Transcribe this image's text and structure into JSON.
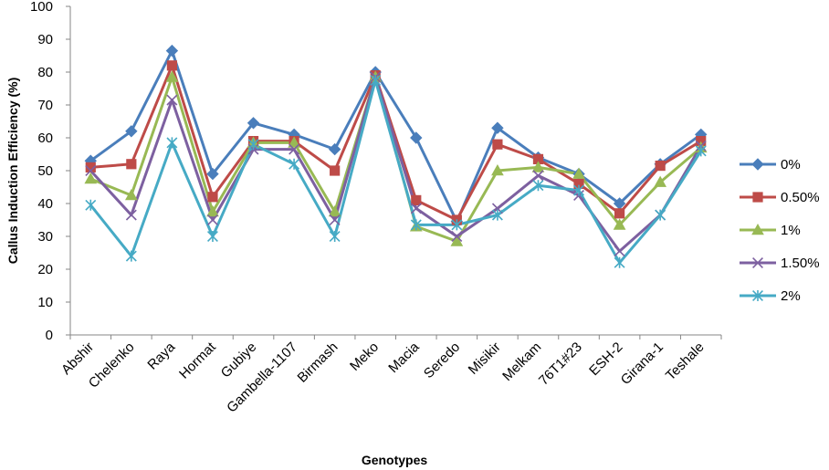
{
  "chart_data": {
    "type": "line",
    "title": "",
    "xlabel": "Genotypes",
    "ylabel": "Callus Induction Efficiency (%)",
    "ylim": [
      0,
      100
    ],
    "yticks": [
      0,
      10,
      20,
      30,
      40,
      50,
      60,
      70,
      80,
      90,
      100
    ],
    "grid": false,
    "legend_position": "right",
    "categories": [
      "Abshir",
      "Chelenko",
      "Raya",
      "Hormat",
      "Gubiye",
      "Gambella-1107",
      "Birmash",
      "Meko",
      "Macia",
      "Seredo",
      "Misikir",
      "Melkam",
      "76T1#23",
      "ESH-2",
      "Girana-1",
      "Teshale"
    ],
    "series": [
      {
        "name": "0%",
        "color": "#4A7EBB",
        "marker": "diamond",
        "values": [
          53,
          62,
          86.5,
          49,
          64.5,
          61,
          56.5,
          80,
          60,
          34.5,
          63,
          54,
          49,
          40,
          52,
          61
        ]
      },
      {
        "name": "0.50%",
        "color": "#BE4B48",
        "marker": "square",
        "values": [
          51,
          52,
          82,
          42,
          59,
          59,
          50,
          79,
          41,
          35,
          58,
          53.5,
          46,
          37,
          51.5,
          59
        ]
      },
      {
        "name": "1%",
        "color": "#98B954",
        "marker": "triangle",
        "values": [
          47.5,
          42.5,
          78.5,
          37.5,
          58.5,
          58.5,
          37.5,
          78.5,
          33,
          28.5,
          50,
          51,
          49,
          33.5,
          46.5,
          57
        ]
      },
      {
        "name": "1.50%",
        "color": "#7D60A0",
        "marker": "x",
        "values": [
          50,
          36.5,
          71.5,
          35,
          56.5,
          56.5,
          35,
          78.5,
          38.5,
          30,
          38.5,
          48.5,
          42.5,
          25.5,
          36.5,
          57.5
        ]
      },
      {
        "name": "2%",
        "color": "#46AAC5",
        "marker": "asterisk",
        "values": [
          39.5,
          24,
          58.5,
          30,
          58,
          52,
          30,
          77.5,
          33.5,
          33.5,
          36.5,
          45.5,
          44,
          22,
          36.5,
          56
        ]
      }
    ]
  }
}
